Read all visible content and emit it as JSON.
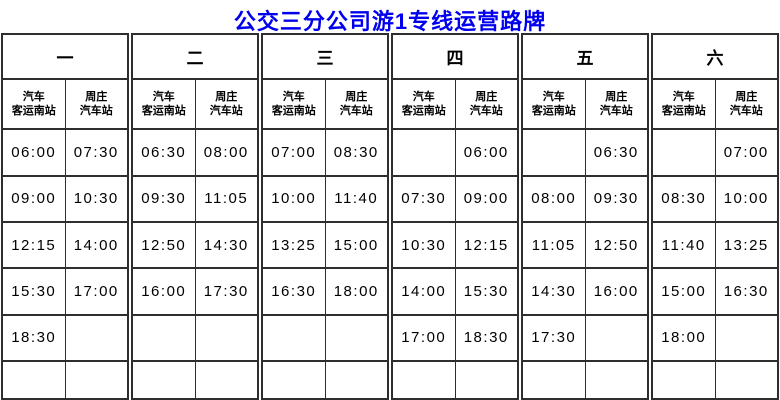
{
  "title": "公交三分公司游1专线运营路牌",
  "colors": {
    "title_text": "#0000EE",
    "grid_line": "#2e2e2e",
    "background": "#FFFFFF",
    "time_text": "#000000"
  },
  "schedule": {
    "station_a": [
      "汽车",
      "客运南站"
    ],
    "station_b": [
      "周庄",
      "汽车站"
    ],
    "days": [
      {
        "label": "一",
        "rows": [
          [
            "06:00",
            "07:30"
          ],
          [
            "09:00",
            "10:30"
          ],
          [
            "12:15",
            "14:00"
          ],
          [
            "15:30",
            "17:00"
          ],
          [
            "18:30",
            ""
          ]
        ]
      },
      {
        "label": "二",
        "rows": [
          [
            "06:30",
            "08:00"
          ],
          [
            "09:30",
            "11:05"
          ],
          [
            "12:50",
            "14:30"
          ],
          [
            "16:00",
            "17:30"
          ],
          [
            "",
            ""
          ]
        ]
      },
      {
        "label": "三",
        "rows": [
          [
            "07:00",
            "08:30"
          ],
          [
            "10:00",
            "11:40"
          ],
          [
            "13:25",
            "15:00"
          ],
          [
            "16:30",
            "18:00"
          ],
          [
            "",
            ""
          ]
        ]
      },
      {
        "label": "四",
        "rows": [
          [
            "",
            "06:00"
          ],
          [
            "07:30",
            "09:00"
          ],
          [
            "10:30",
            "12:15"
          ],
          [
            "14:00",
            "15:30"
          ],
          [
            "17:00",
            "18:30"
          ]
        ]
      },
      {
        "label": "五",
        "rows": [
          [
            "",
            "06:30"
          ],
          [
            "08:00",
            "09:30"
          ],
          [
            "11:05",
            "12:50"
          ],
          [
            "14:30",
            "16:00"
          ],
          [
            "17:30",
            ""
          ]
        ]
      },
      {
        "label": "六",
        "rows": [
          [
            "",
            "07:00"
          ],
          [
            "08:30",
            "10:00"
          ],
          [
            "11:40",
            "13:25"
          ],
          [
            "15:00",
            "16:30"
          ],
          [
            "18:00",
            ""
          ]
        ]
      }
    ]
  }
}
